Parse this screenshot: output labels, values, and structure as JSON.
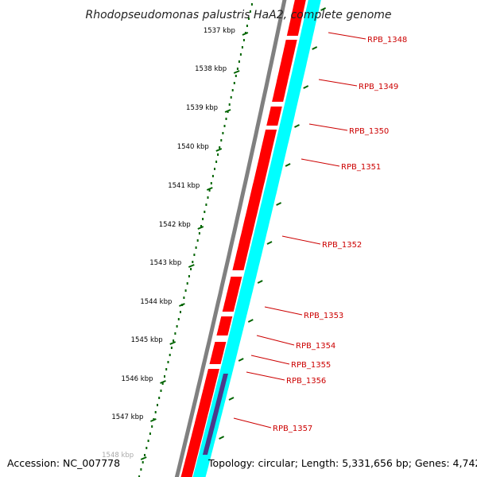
{
  "title": "Rhodopseudomonas palustris HaA2, complete genome",
  "footer": {
    "accession": "Accession: NC_007778",
    "summary": "Topology: circular; Length: 5,331,656 bp; Genes: 4,742"
  },
  "colors": {
    "backbone": "#808080",
    "forward_cds": "#ff0000",
    "reverse_cds": "#00ffff",
    "rna_feature": "#4b3a8c",
    "ticks": "#006400",
    "label": "#cc0000"
  },
  "scale_ticks": [
    {
      "label": "1537 kbp"
    },
    {
      "label": "1538 kbp"
    },
    {
      "label": "1539 kbp"
    },
    {
      "label": "1540 kbp"
    },
    {
      "label": "1541 kbp"
    },
    {
      "label": "1542 kbp"
    },
    {
      "label": "1543 kbp"
    },
    {
      "label": "1544 kbp"
    },
    {
      "label": "1545 kbp"
    },
    {
      "label": "1546 kbp"
    },
    {
      "label": "1547 kbp"
    },
    {
      "label": "1548 kbp"
    }
  ],
  "genes": [
    {
      "label": "RPB_1348"
    },
    {
      "label": "RPB_1349"
    },
    {
      "label": "RPB_1350"
    },
    {
      "label": "RPB_1351"
    },
    {
      "label": "RPB_1352"
    },
    {
      "label": "RPB_1353"
    },
    {
      "label": "RPB_1354"
    },
    {
      "label": "RPB_1355"
    },
    {
      "label": "RPB_1356"
    },
    {
      "label": "RPB_1357"
    }
  ]
}
